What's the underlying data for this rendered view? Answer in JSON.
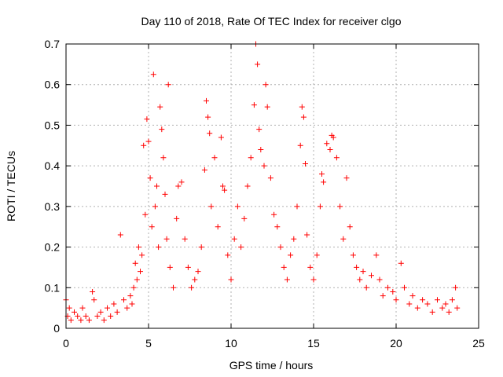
{
  "chart_data": {
    "type": "scatter",
    "title": "Day 110 of 2018, Rate Of TEC Index for receiver clgo",
    "xlabel": "GPS time / hours",
    "ylabel": "ROTI / TECUs",
    "xlim": [
      0,
      25
    ],
    "ylim": [
      0,
      0.7
    ],
    "xticks": [
      0,
      5,
      10,
      15,
      20,
      25
    ],
    "yticks": [
      0,
      0.1,
      0.2,
      0.3,
      0.4,
      0.5,
      0.6,
      0.7
    ],
    "xtick_labels": [
      "0",
      "5",
      "10",
      "15",
      "20",
      "25"
    ],
    "ytick_labels": [
      "0",
      "0.1",
      "0.2",
      "0.3",
      "0.4",
      "0.5",
      "0.6",
      "0.7"
    ],
    "grid": true,
    "marker": "+",
    "color": "#ff0000",
    "series": [
      {
        "points": [
          [
            0.0,
            0.07
          ],
          [
            0.1,
            0.03
          ],
          [
            0.2,
            0.05
          ],
          [
            0.3,
            0.02
          ],
          [
            0.5,
            0.04
          ],
          [
            0.7,
            0.03
          ],
          [
            0.9,
            0.02
          ],
          [
            1.0,
            0.05
          ],
          [
            1.2,
            0.03
          ],
          [
            1.4,
            0.02
          ],
          [
            1.6,
            0.09
          ],
          [
            1.7,
            0.07
          ],
          [
            1.9,
            0.03
          ],
          [
            2.1,
            0.04
          ],
          [
            2.3,
            0.02
          ],
          [
            2.5,
            0.05
          ],
          [
            2.7,
            0.03
          ],
          [
            2.9,
            0.06
          ],
          [
            3.1,
            0.04
          ],
          [
            3.3,
            0.23
          ],
          [
            3.5,
            0.07
          ],
          [
            3.7,
            0.05
          ],
          [
            3.9,
            0.08
          ],
          [
            4.0,
            0.06
          ],
          [
            4.1,
            0.1
          ],
          [
            4.2,
            0.16
          ],
          [
            4.3,
            0.12
          ],
          [
            4.4,
            0.2
          ],
          [
            4.5,
            0.14
          ],
          [
            4.6,
            0.18
          ],
          [
            4.7,
            0.45
          ],
          [
            4.8,
            0.28
          ],
          [
            4.9,
            0.515
          ],
          [
            5.0,
            0.46
          ],
          [
            5.1,
            0.37
          ],
          [
            5.2,
            0.25
          ],
          [
            5.3,
            0.625
          ],
          [
            5.4,
            0.3
          ],
          [
            5.5,
            0.35
          ],
          [
            5.6,
            0.2
          ],
          [
            5.7,
            0.545
          ],
          [
            5.8,
            0.49
          ],
          [
            5.9,
            0.42
          ],
          [
            6.0,
            0.33
          ],
          [
            6.1,
            0.22
          ],
          [
            6.2,
            0.6
          ],
          [
            6.3,
            0.15
          ],
          [
            6.5,
            0.1
          ],
          [
            6.7,
            0.27
          ],
          [
            6.8,
            0.35
          ],
          [
            7.0,
            0.36
          ],
          [
            7.2,
            0.22
          ],
          [
            7.4,
            0.15
          ],
          [
            7.6,
            0.1
          ],
          [
            7.8,
            0.12
          ],
          [
            8.0,
            0.14
          ],
          [
            8.2,
            0.2
          ],
          [
            8.4,
            0.39
          ],
          [
            8.5,
            0.56
          ],
          [
            8.6,
            0.52
          ],
          [
            8.7,
            0.48
          ],
          [
            8.8,
            0.3
          ],
          [
            9.0,
            0.42
          ],
          [
            9.2,
            0.25
          ],
          [
            9.4,
            0.47
          ],
          [
            9.5,
            0.35
          ],
          [
            9.6,
            0.34
          ],
          [
            9.8,
            0.18
          ],
          [
            10.0,
            0.12
          ],
          [
            10.2,
            0.22
          ],
          [
            10.4,
            0.3
          ],
          [
            10.6,
            0.2
          ],
          [
            10.8,
            0.27
          ],
          [
            11.0,
            0.35
          ],
          [
            11.2,
            0.42
          ],
          [
            11.4,
            0.55
          ],
          [
            11.5,
            0.7
          ],
          [
            11.6,
            0.65
          ],
          [
            11.7,
            0.49
          ],
          [
            11.8,
            0.44
          ],
          [
            12.0,
            0.4
          ],
          [
            12.1,
            0.6
          ],
          [
            12.2,
            0.545
          ],
          [
            12.4,
            0.37
          ],
          [
            12.6,
            0.28
          ],
          [
            12.8,
            0.25
          ],
          [
            13.0,
            0.2
          ],
          [
            13.2,
            0.15
          ],
          [
            13.4,
            0.12
          ],
          [
            13.6,
            0.18
          ],
          [
            13.8,
            0.22
          ],
          [
            14.0,
            0.3
          ],
          [
            14.2,
            0.45
          ],
          [
            14.3,
            0.545
          ],
          [
            14.4,
            0.52
          ],
          [
            14.5,
            0.405
          ],
          [
            14.6,
            0.23
          ],
          [
            14.8,
            0.15
          ],
          [
            15.0,
            0.12
          ],
          [
            15.2,
            0.18
          ],
          [
            15.4,
            0.3
          ],
          [
            15.5,
            0.38
          ],
          [
            15.6,
            0.36
          ],
          [
            15.8,
            0.455
          ],
          [
            16.0,
            0.44
          ],
          [
            16.1,
            0.475
          ],
          [
            16.2,
            0.47
          ],
          [
            16.4,
            0.42
          ],
          [
            16.6,
            0.3
          ],
          [
            16.8,
            0.22
          ],
          [
            17.0,
            0.37
          ],
          [
            17.2,
            0.25
          ],
          [
            17.4,
            0.18
          ],
          [
            17.6,
            0.15
          ],
          [
            17.8,
            0.12
          ],
          [
            18.0,
            0.14
          ],
          [
            18.2,
            0.1
          ],
          [
            18.5,
            0.13
          ],
          [
            18.8,
            0.18
          ],
          [
            19.0,
            0.12
          ],
          [
            19.2,
            0.08
          ],
          [
            19.5,
            0.1
          ],
          [
            19.8,
            0.09
          ],
          [
            20.0,
            0.07
          ],
          [
            20.3,
            0.16
          ],
          [
            20.5,
            0.1
          ],
          [
            20.8,
            0.06
          ],
          [
            21.0,
            0.08
          ],
          [
            21.3,
            0.05
          ],
          [
            21.6,
            0.07
          ],
          [
            21.9,
            0.06
          ],
          [
            22.2,
            0.04
          ],
          [
            22.5,
            0.07
          ],
          [
            22.8,
            0.05
          ],
          [
            23.0,
            0.06
          ],
          [
            23.2,
            0.04
          ],
          [
            23.4,
            0.07
          ],
          [
            23.6,
            0.1
          ],
          [
            23.7,
            0.05
          ]
        ]
      }
    ]
  }
}
